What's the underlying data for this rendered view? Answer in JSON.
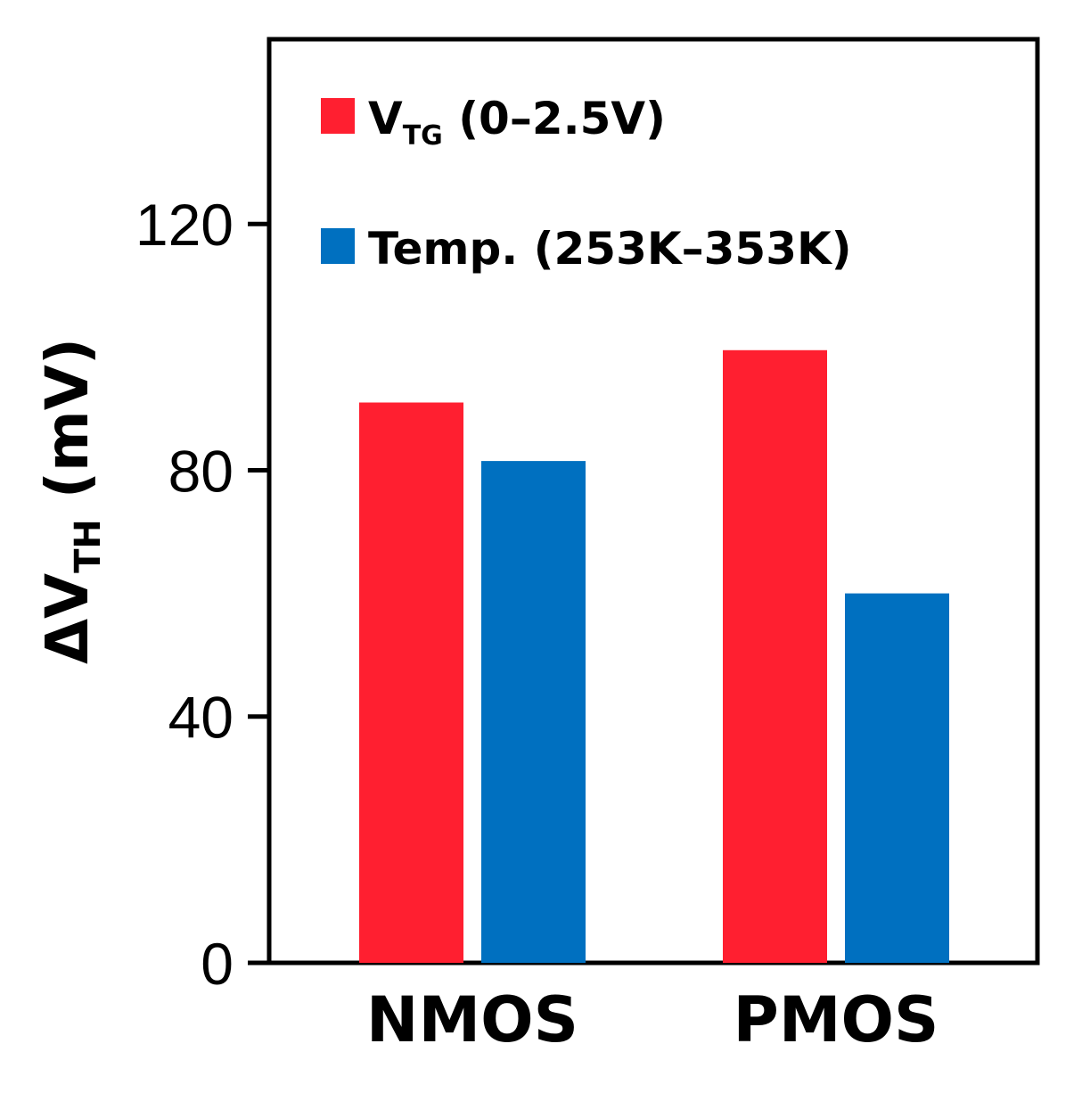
{
  "chart_data": {
    "type": "bar",
    "categories": [
      "NMOS",
      "PMOS"
    ],
    "series": [
      {
        "name": "V_TG (0–2.5V)",
        "legend_main": "V",
        "legend_sub": "TG",
        "legend_rest": " (0–2.5V)",
        "color": "#ff1f30",
        "values": [
          91,
          99.5
        ]
      },
      {
        "name": "Temp. (253K–353K)",
        "legend_main": "Temp. (253K–353K)",
        "color": "#0070c0",
        "values": [
          81.5,
          60
        ]
      }
    ],
    "ylabel": {
      "prefix": "ΔV",
      "sub": "TH",
      "suffix": " (mV)"
    },
    "xlabel": "",
    "ylim": [
      0,
      150
    ],
    "yticks": [
      0,
      40,
      80,
      120
    ],
    "ytick_labels": [
      "0",
      "40",
      "80",
      "120"
    ],
    "grid": false,
    "legend_position": "top-left"
  }
}
